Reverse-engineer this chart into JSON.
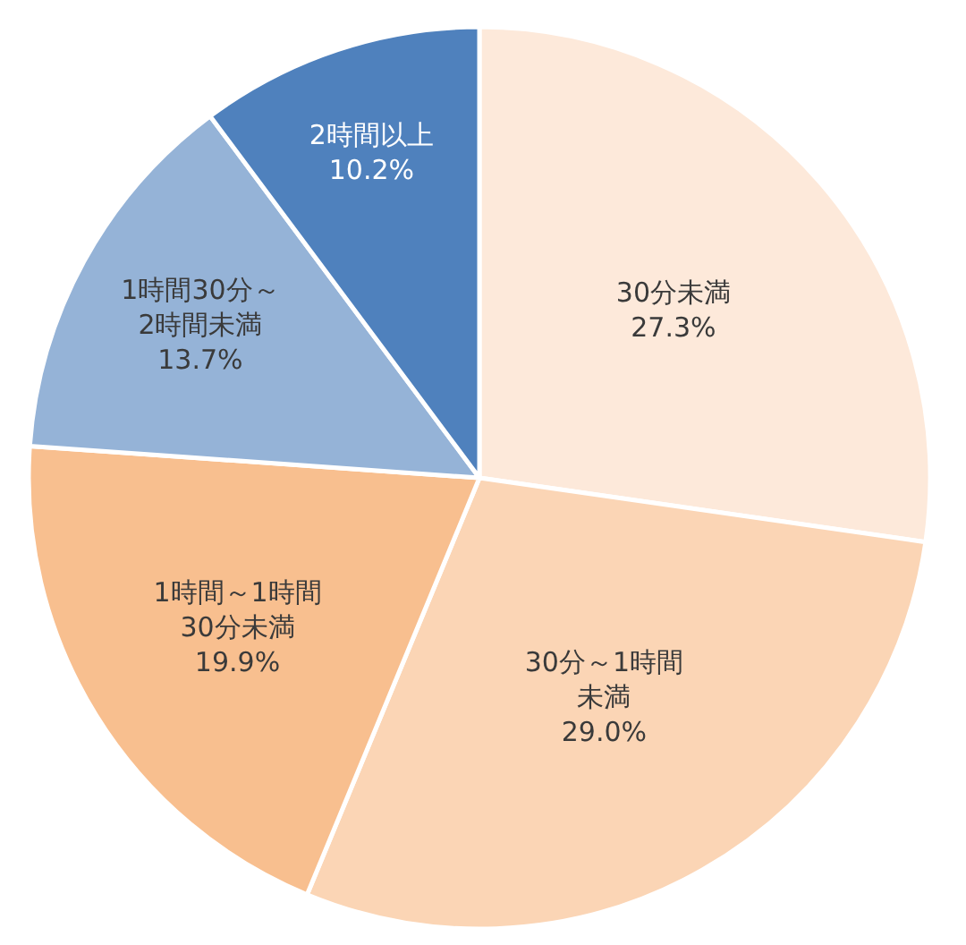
{
  "chart_data": {
    "type": "pie",
    "categories": [
      "30分未満",
      "30分～1時間未満",
      "1時間～1時間30分未満",
      "1時間30分～2時間未満",
      "2時間以上"
    ],
    "values": [
      27.3,
      29.0,
      19.9,
      13.7,
      10.2
    ],
    "value_labels": [
      "27.3%",
      "29.0%",
      "19.9%",
      "13.7%",
      "10.2%"
    ],
    "colors": [
      "#fde9da",
      "#fbd5b5",
      "#f8bf8f",
      "#95b3d7",
      "#4f81bd"
    ],
    "legend": false
  }
}
